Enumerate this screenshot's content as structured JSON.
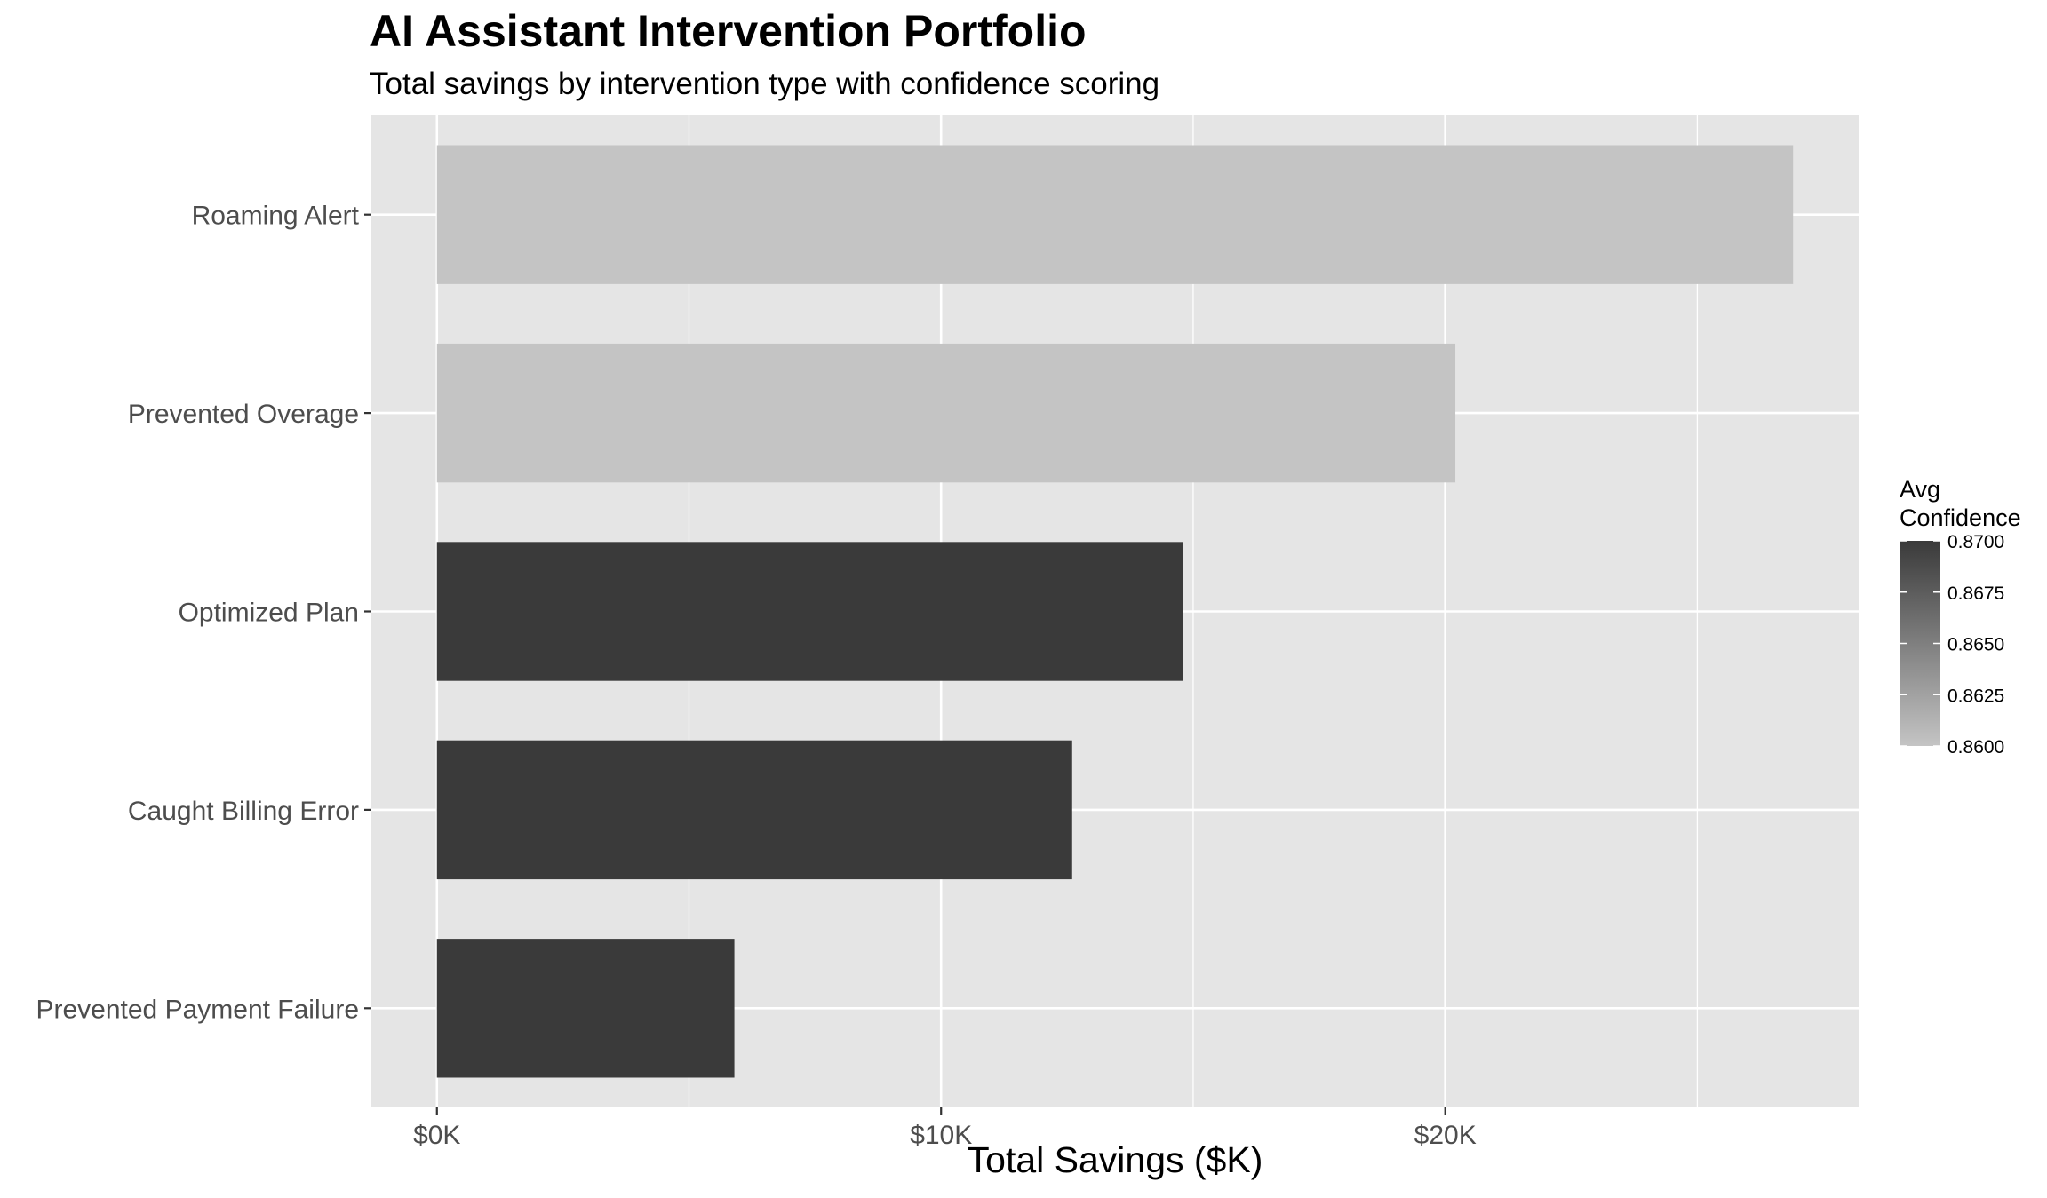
{
  "chart_data": {
    "type": "bar",
    "orientation": "horizontal",
    "title": "AI Assistant Intervention Portfolio",
    "subtitle": "Total savings by intervention type with confidence scoring",
    "xlabel": "Total Savings ($K)",
    "ylabel": "",
    "categories": [
      "Roaming Alert",
      "Prevented Overage",
      "Optimized Plan",
      "Caught Billing Error",
      "Prevented Payment Failure"
    ],
    "values": [
      26900,
      20200,
      14800,
      12600,
      5900
    ],
    "confidence": [
      0.86,
      0.86,
      0.87,
      0.87,
      0.87
    ],
    "xlim": [
      -1300,
      28200
    ],
    "x_ticks": [
      0,
      10000,
      20000
    ],
    "x_tick_labels": [
      "$0K",
      "$10K",
      "$20K"
    ],
    "x_minor_ticks": [
      5000,
      15000,
      25000
    ],
    "grid": true,
    "background": "#e5e5e5",
    "gridline_color": "#ffffff",
    "legend": {
      "title_lines": [
        "Avg",
        "Confidence"
      ],
      "placement": "right",
      "range": [
        0.86,
        0.87
      ],
      "ticks": [
        0.87,
        0.8675,
        0.865,
        0.8625,
        0.86
      ],
      "tick_labels": [
        "0.8700",
        "0.8675",
        "0.8650",
        "0.8625",
        "0.8600"
      ],
      "color_low": "#c4c4c4",
      "color_high": "#3a3a3a"
    }
  }
}
